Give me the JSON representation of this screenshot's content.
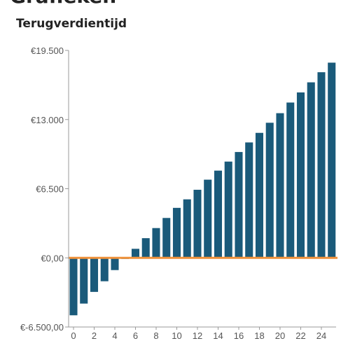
{
  "page": {
    "heading": "Grafieken"
  },
  "chart_data": {
    "type": "bar",
    "title": "Terugverdientijd",
    "xlabel": "",
    "ylabel": "",
    "x": [
      0,
      1,
      2,
      3,
      4,
      5,
      6,
      7,
      8,
      9,
      10,
      11,
      12,
      13,
      14,
      15,
      16,
      17,
      18,
      19,
      20,
      21,
      22,
      23,
      24,
      25
    ],
    "values": [
      -5400,
      -4300,
      -3200,
      -2200,
      -1150,
      -100,
      850,
      1850,
      2800,
      3750,
      4700,
      5500,
      6400,
      7350,
      8200,
      9050,
      9950,
      10850,
      11750,
      12700,
      13600,
      14600,
      15550,
      16500,
      17450,
      18350
    ],
    "xticks": [
      "0",
      "2",
      "4",
      "6",
      "8",
      "10",
      "12",
      "14",
      "16",
      "18",
      "20",
      "22",
      "24"
    ],
    "yticks": [
      "€19.500",
      "€13.000",
      "€6.500",
      "€0,00",
      "€-6.500,00"
    ],
    "ytick_values": [
      19500,
      13000,
      6500,
      0,
      -6500
    ],
    "ylim": [
      -6500,
      19500
    ],
    "grid": false,
    "legend": "none",
    "colors": {
      "bar": "#1a5a7a",
      "zero_line": "#f0913a",
      "axis": "#999999"
    }
  }
}
